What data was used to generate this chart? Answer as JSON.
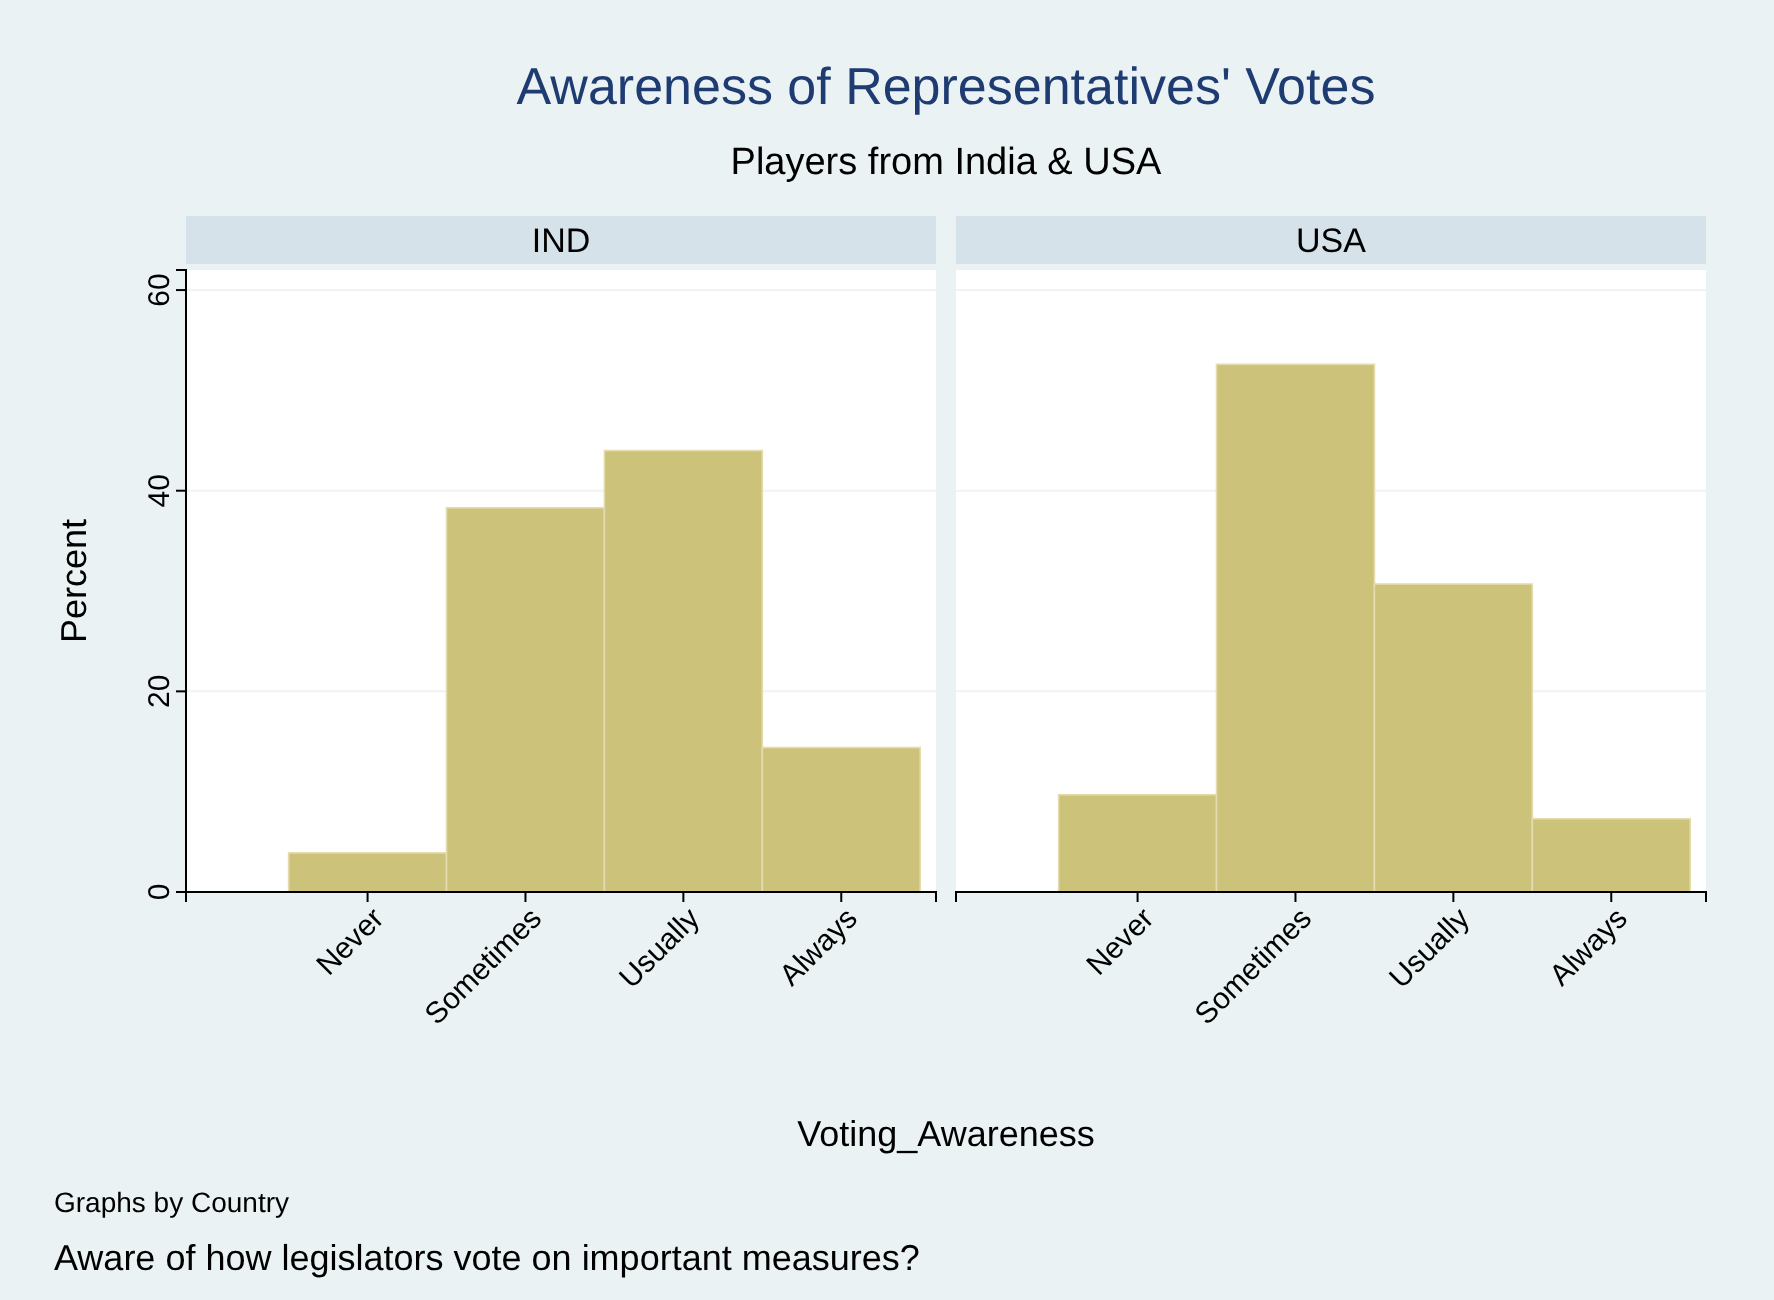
{
  "chart_data": [
    {
      "type": "bar",
      "title": "IND",
      "ylabel": "Percent",
      "xlabel": "Voting_Awareness",
      "categories": [
        "Never",
        "Sometimes",
        "Usually",
        "Always"
      ],
      "values": [
        3.9,
        38.3,
        44.0,
        14.4
      ],
      "color": "#ccc27a",
      "ylim": [
        0,
        62
      ],
      "yticks": [
        0,
        20,
        40,
        60
      ],
      "grid": "y",
      "annotations": [
        "Awareness of Representatives' Votes",
        "Players from India & USA",
        "Graphs by Country",
        "Aware of how legislators vote on important measures?"
      ]
    },
    {
      "type": "bar",
      "title": "USA",
      "categories": [
        "Never",
        "Sometimes",
        "Usually",
        "Always"
      ],
      "values": [
        9.7,
        52.6,
        30.7,
        7.3
      ],
      "color": "#ccc27a",
      "ylim": [
        0,
        62
      ],
      "yticks": [
        0,
        20,
        40,
        60
      ],
      "grid": "y",
      "tick_labels": "x"
    }
  ]
}
